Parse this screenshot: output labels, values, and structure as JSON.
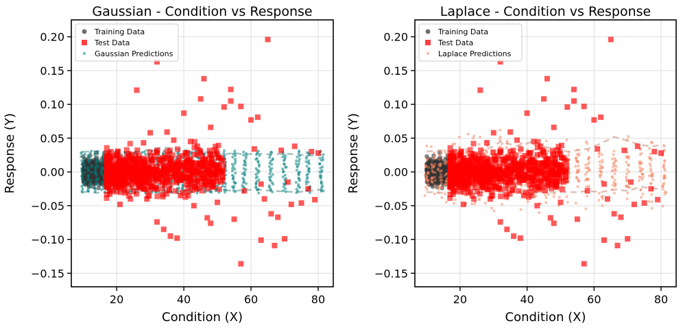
{
  "chart_data": [
    {
      "type": "scatter",
      "title": "Gaussian - Condition vs Response",
      "xlabel": "Condition (X)",
      "ylabel": "Response (Y)",
      "xlim": [
        6.5,
        84.5
      ],
      "ylim": [
        -0.17,
        0.225
      ],
      "xticks": [
        20,
        40,
        60,
        80
      ],
      "xtick_labels": [
        "20",
        "40",
        "60",
        "80"
      ],
      "yticks": [
        -0.15,
        -0.1,
        -0.05,
        0.0,
        0.05,
        0.1,
        0.15,
        0.2
      ],
      "ytick_labels": [
        "−0.15",
        "−0.10",
        "−0.05",
        "0.00",
        "0.05",
        "0.10",
        "0.15",
        "0.20"
      ],
      "grid": true,
      "legend_loc": "upper left",
      "legend": [
        "Training Data",
        "Test Data",
        "Gaussian Predictions"
      ],
      "series": [
        {
          "name": "Training Data",
          "marker": "circle",
          "color": "#333333",
          "x_range": [
            10,
            17
          ],
          "y_spread": 0.018,
          "n": 500
        },
        {
          "name": "Test Data",
          "marker": "square",
          "color": "#ff0000",
          "x_range": [
            17,
            81
          ],
          "y_spread": 0.03,
          "n": 800,
          "outliers": [
            [
              32,
              0.163
            ],
            [
              65,
              0.196
            ],
            [
              26,
              0.121
            ],
            [
              46,
              0.138
            ],
            [
              45,
              0.108
            ],
            [
              54,
              0.122
            ],
            [
              54,
              0.105
            ],
            [
              52,
              0.096
            ],
            [
              57,
              0.097
            ],
            [
              62,
              0.081
            ],
            [
              60,
              0.077
            ],
            [
              40,
              0.087
            ],
            [
              35,
              0.059
            ],
            [
              48,
              0.066
            ],
            [
              37,
              0.047
            ],
            [
              30,
              0.058
            ],
            [
              28,
              0.043
            ],
            [
              32,
              -0.074
            ],
            [
              34,
              -0.085
            ],
            [
              36,
              -0.095
            ],
            [
              38,
              -0.098
            ],
            [
              47,
              -0.068
            ],
            [
              48,
              -0.076
            ],
            [
              55,
              -0.07
            ],
            [
              63,
              -0.101
            ],
            [
              67,
              -0.109
            ],
            [
              70,
              -0.099
            ],
            [
              57,
              -0.136
            ],
            [
              66,
              -0.062
            ],
            [
              68,
              -0.067
            ],
            [
              72,
              -0.048
            ],
            [
              75,
              -0.046
            ],
            [
              79,
              -0.041
            ],
            [
              77,
              -0.025
            ],
            [
              58,
              -0.028
            ],
            [
              64,
              -0.04
            ],
            [
              50,
              -0.045
            ],
            [
              43,
              -0.05
            ],
            [
              21,
              -0.048
            ],
            [
              61,
              0.034
            ],
            [
              69,
              0.032
            ],
            [
              73,
              0.038
            ],
            [
              78,
              0.03
            ],
            [
              80,
              0.028
            ],
            [
              63,
              -0.018
            ],
            [
              71,
              -0.015
            ],
            [
              42,
              0.045
            ],
            [
              44,
              0.038
            ],
            [
              29,
              -0.04
            ],
            [
              39,
              -0.035
            ]
          ]
        },
        {
          "name": "Gaussian Predictions",
          "marker": "circle",
          "color": "#008080",
          "x": [
            10,
            12,
            14,
            16,
            18,
            20,
            22,
            24,
            26,
            28,
            30,
            32,
            34,
            36,
            38,
            40,
            42,
            44,
            46,
            48,
            50,
            52,
            55,
            58,
            62,
            66,
            70,
            74,
            77,
            81
          ],
          "spread": [
            0.03,
            0.03,
            0.03,
            0.03,
            0.03,
            0.03,
            0.03,
            0.03,
            0.03,
            0.03,
            0.03,
            0.03,
            0.03,
            0.03,
            0.03,
            0.03,
            0.03,
            0.03,
            0.03,
            0.03,
            0.03,
            0.03,
            0.03,
            0.03,
            0.03,
            0.03,
            0.03,
            0.03,
            0.03,
            0.03
          ],
          "band_upper": [
            0.03,
            0.03,
            0.031,
            0.03,
            0.029,
            0.03,
            0.029,
            0.028,
            0.03,
            0.031,
            0.033,
            0.035,
            0.036,
            0.035,
            0.034,
            0.033,
            0.03,
            0.032,
            0.03,
            0.028,
            0.027,
            0.026,
            0.028,
            0.026,
            0.027,
            0.026,
            0.027,
            0.026,
            0.024,
            0.025
          ],
          "band_lower": [
            -0.03,
            -0.029,
            -0.031,
            -0.03,
            -0.031,
            -0.03,
            -0.03,
            -0.031,
            -0.03,
            -0.029,
            -0.03,
            -0.031,
            -0.032,
            -0.03,
            -0.029,
            -0.028,
            -0.031,
            -0.028,
            -0.027,
            -0.03,
            -0.026,
            -0.027,
            -0.028,
            -0.027,
            -0.026,
            -0.028,
            -0.029,
            -0.03,
            -0.028,
            -0.026
          ]
        }
      ]
    },
    {
      "type": "scatter",
      "title": "Laplace - Condition vs Response",
      "xlabel": "Condition (X)",
      "ylabel": "Response (Y)",
      "xlim": [
        6.5,
        84.5
      ],
      "ylim": [
        -0.17,
        0.225
      ],
      "xticks": [
        20,
        40,
        60,
        80
      ],
      "xtick_labels": [
        "20",
        "40",
        "60",
        "80"
      ],
      "yticks": [
        -0.15,
        -0.1,
        -0.05,
        0.0,
        0.05,
        0.1,
        0.15,
        0.2
      ],
      "ytick_labels": [
        "−0.15",
        "−0.10",
        "−0.05",
        "0.00",
        "0.05",
        "0.10",
        "0.15",
        "0.20"
      ],
      "grid": true,
      "legend_loc": "upper left",
      "legend": [
        "Training Data",
        "Test Data",
        "Laplace Predictions"
      ],
      "series": [
        {
          "name": "Training Data",
          "marker": "circle",
          "color": "#333333",
          "x_range": [
            10,
            17
          ],
          "y_spread": 0.018,
          "n": 500
        },
        {
          "name": "Test Data",
          "marker": "square",
          "color": "#ff0000",
          "x_range": [
            17,
            81
          ],
          "y_spread": 0.03,
          "n": 800,
          "outliers": [
            [
              32,
              0.163
            ],
            [
              65,
              0.196
            ],
            [
              26,
              0.121
            ],
            [
              46,
              0.138
            ],
            [
              45,
              0.108
            ],
            [
              54,
              0.122
            ],
            [
              54,
              0.105
            ],
            [
              52,
              0.096
            ],
            [
              57,
              0.097
            ],
            [
              62,
              0.081
            ],
            [
              60,
              0.077
            ],
            [
              40,
              0.087
            ],
            [
              35,
              0.059
            ],
            [
              48,
              0.066
            ],
            [
              37,
              0.047
            ],
            [
              30,
              0.058
            ],
            [
              28,
              0.043
            ],
            [
              32,
              -0.074
            ],
            [
              34,
              -0.085
            ],
            [
              36,
              -0.095
            ],
            [
              38,
              -0.098
            ],
            [
              47,
              -0.068
            ],
            [
              48,
              -0.076
            ],
            [
              55,
              -0.07
            ],
            [
              63,
              -0.101
            ],
            [
              67,
              -0.109
            ],
            [
              70,
              -0.099
            ],
            [
              57,
              -0.136
            ],
            [
              66,
              -0.062
            ],
            [
              68,
              -0.067
            ],
            [
              72,
              -0.048
            ],
            [
              75,
              -0.046
            ],
            [
              79,
              -0.041
            ],
            [
              77,
              -0.025
            ],
            [
              58,
              -0.028
            ],
            [
              64,
              -0.04
            ],
            [
              50,
              -0.045
            ],
            [
              43,
              -0.05
            ],
            [
              21,
              -0.048
            ],
            [
              61,
              0.034
            ],
            [
              69,
              0.032
            ],
            [
              73,
              0.038
            ],
            [
              78,
              0.03
            ],
            [
              80,
              0.028
            ],
            [
              63,
              -0.018
            ],
            [
              71,
              -0.015
            ],
            [
              42,
              0.045
            ],
            [
              44,
              0.038
            ],
            [
              29,
              -0.04
            ],
            [
              39,
              -0.035
            ]
          ]
        },
        {
          "name": "Laplace Predictions",
          "marker": "circle",
          "color": "#f4845f",
          "x": [
            10,
            12,
            14,
            16,
            18,
            20,
            22,
            24,
            26,
            28,
            30,
            32,
            34,
            36,
            38,
            40,
            42,
            44,
            46,
            48,
            50,
            52,
            55,
            58,
            62,
            66,
            70,
            74,
            77,
            81
          ],
          "spread": [
            0.045,
            0.05,
            0.055,
            0.055,
            0.06,
            0.06,
            0.06,
            0.06,
            0.06,
            0.065,
            0.07,
            0.075,
            0.065,
            0.06,
            0.06,
            0.06,
            0.06,
            0.06,
            0.06,
            0.06,
            0.06,
            0.06,
            0.06,
            0.06,
            0.06,
            0.06,
            0.06,
            0.06,
            0.06,
            0.06
          ],
          "band_upper": [
            0.03,
            0.031,
            0.032,
            0.031,
            0.03,
            0.031,
            0.03,
            0.029,
            0.03,
            0.034,
            0.038,
            0.045,
            0.042,
            0.04,
            0.038,
            0.042,
            0.046,
            0.04,
            0.036,
            0.035,
            0.034,
            0.03,
            0.032,
            0.034,
            0.042,
            0.052,
            0.046,
            0.04,
            0.038,
            0.04
          ],
          "band_lower": [
            -0.03,
            -0.03,
            -0.031,
            -0.03,
            -0.031,
            -0.03,
            -0.03,
            -0.031,
            -0.03,
            -0.03,
            -0.031,
            -0.03,
            -0.03,
            -0.03,
            -0.03,
            -0.03,
            -0.03,
            -0.03,
            -0.03,
            -0.03,
            -0.03,
            -0.03,
            -0.03,
            -0.028,
            -0.03,
            -0.026,
            -0.028,
            -0.022,
            -0.024,
            -0.026
          ]
        }
      ]
    }
  ]
}
